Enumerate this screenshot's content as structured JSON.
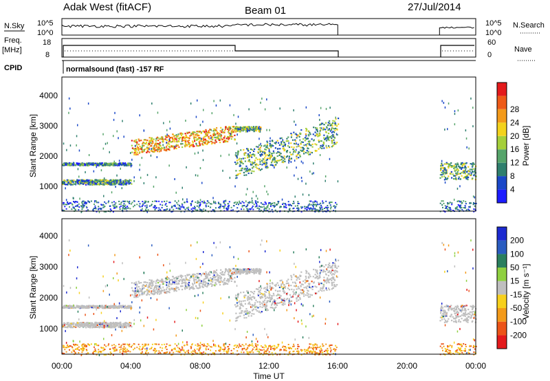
{
  "header": {
    "station": "Adak West (fitACF)",
    "beam": "Beam 01",
    "date": "27/Jul/2014"
  },
  "left_labels": {
    "nsky": "N.Sky",
    "freq": "Freq.",
    "freq_unit": "[MHz]",
    "cpid": "CPID"
  },
  "right_labels": {
    "nsearch": "N.Search",
    "nave": "Nave"
  },
  "cpid_text": "normalsound (fast) -157 RF",
  "noise_panel": {
    "left_ticks": [
      "10^5",
      "10^0"
    ],
    "right_ticks": [
      "10^5",
      "10^0"
    ]
  },
  "freq_panel": {
    "left_ticks": [
      "18",
      "8"
    ],
    "right_ticks": [
      "60",
      "0"
    ]
  },
  "x_axis": {
    "label": "Time UT",
    "ticks": [
      "00:00",
      "04:00",
      "08:00",
      "12:00",
      "16:00",
      "20:00",
      "00:00"
    ]
  },
  "power_panel": {
    "ylabel": "Slant Range [km]",
    "yticks": [
      "1000",
      "2000",
      "3000",
      "4000"
    ]
  },
  "velocity_panel": {
    "ylabel": "Slant Range [km]",
    "yticks": [
      "1000",
      "2000",
      "3000",
      "4000"
    ]
  },
  "power_colorbar": {
    "label": "Power [dB]",
    "ticks": [
      "4",
      "8",
      "12",
      "16",
      "20",
      "24",
      "28"
    ],
    "colors": [
      "#1c1cff",
      "#1a48c8",
      "#2f7f6e",
      "#56a46a",
      "#a5cf3a",
      "#f3d21c",
      "#f39a1a",
      "#ee5a18",
      "#e41a1c"
    ]
  },
  "velocity_colorbar": {
    "label": "Velocity [m s⁻¹]",
    "ticks": [
      "200",
      "100",
      "50",
      "15",
      "-15",
      "-50",
      "-100",
      "-200"
    ],
    "colors": [
      "#1c2ad0",
      "#2a5cc0",
      "#2a7f5e",
      "#8fd040",
      "#bfbfbf",
      "#f7d01c",
      "#f39a1a",
      "#ec5418",
      "#e41a1c"
    ]
  },
  "chart_data": {
    "type": "heatmap",
    "x_range_hours": [
      0,
      24
    ],
    "data_gap_hours": [
      16.0,
      21.9
    ],
    "frequency_mhz": [
      {
        "t_start": 0.0,
        "t_end": 10.0,
        "value": 14
      },
      {
        "t_start": 10.0,
        "t_end": 16.0,
        "value": 12
      },
      {
        "t_start": 21.9,
        "t_end": 24.0,
        "value": 14
      }
    ],
    "power_echo_bands": [
      {
        "t_start": 0.0,
        "t_end": 4.0,
        "range_km": [
          1000,
          1300
        ],
        "power_db": 10
      },
      {
        "t_start": 0.0,
        "t_end": 4.0,
        "range_km": [
          1650,
          1800
        ],
        "power_db": 8
      },
      {
        "t_start": 4.0,
        "t_end": 10.0,
        "range_km": [
          1800,
          2700
        ],
        "power_db": 20
      },
      {
        "t_start": 10.0,
        "t_end": 16.0,
        "range_km": [
          1300,
          2900
        ],
        "power_db": 12
      },
      {
        "t_start": 10.0,
        "t_end": 11.5,
        "range_km": [
          2700,
          3000
        ],
        "power_db": 12
      },
      {
        "t_start": 21.9,
        "t_end": 24.0,
        "range_km": [
          1000,
          2000
        ],
        "power_db": 12
      }
    ],
    "velocity_summary_m_s": [
      -15,
      15
    ],
    "yrange_km": [
      200,
      4500
    ]
  }
}
